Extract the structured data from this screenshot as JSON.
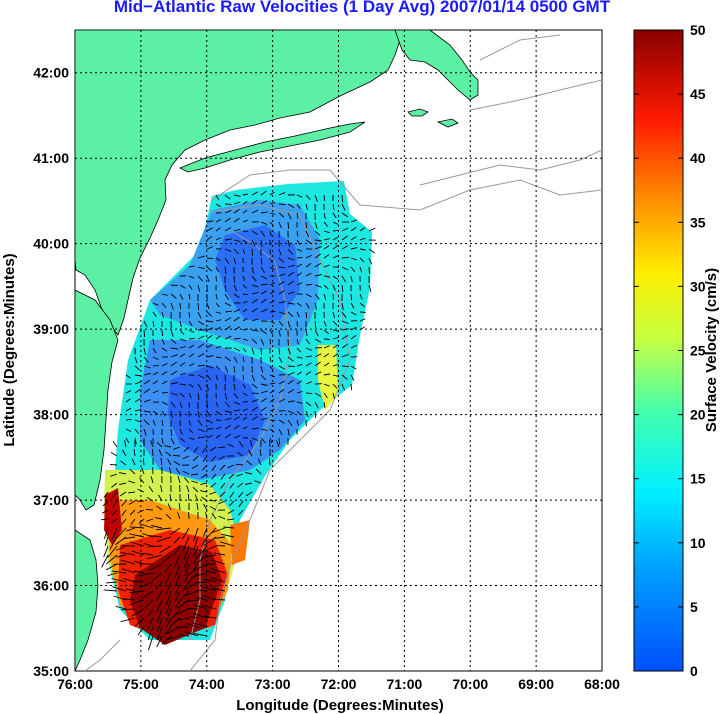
{
  "title": "Mid−Atlantic Raw Velocities (1 Day Avg) 2007/01/14 0500 GMT",
  "map": {
    "xlabel": "Longitude (Degrees:Minutes)",
    "ylabel": "Latitude (Degrees:Minutes)",
    "lon_ticks": [
      "76:00",
      "75:00",
      "74:00",
      "73:00",
      "72:00",
      "71:00",
      "70:00",
      "69:00",
      "68:00"
    ],
    "lat_ticks": [
      "35:00",
      "36:00",
      "37:00",
      "38:00",
      "39:00",
      "40:00",
      "41:00",
      "42:00"
    ],
    "lon_range": [
      -76,
      -68
    ],
    "lat_range": [
      35,
      42.5
    ],
    "grid": true,
    "colors": {
      "land": "#5cf0a5",
      "coast": "#000000",
      "bathymetry": "#999999",
      "grid": "#000000",
      "vectors": "#000000"
    }
  },
  "colorbar": {
    "label": "Surface Velocity (cm/s)",
    "ticks": [
      "0",
      "5",
      "10",
      "15",
      "20",
      "25",
      "30",
      "35",
      "40",
      "45",
      "50"
    ],
    "range": [
      0,
      50
    ],
    "colormap": "jet"
  },
  "regions": [
    {
      "name": "northern-blue-patch",
      "lon": -73.6,
      "lat": 39.9,
      "speed": 4
    },
    {
      "name": "central-blue-patch",
      "lon": -73.3,
      "lat": 38.1,
      "speed": 5
    },
    {
      "name": "southern-fast-patch",
      "lon": -74.3,
      "lat": 35.8,
      "speed": 48
    }
  ]
}
